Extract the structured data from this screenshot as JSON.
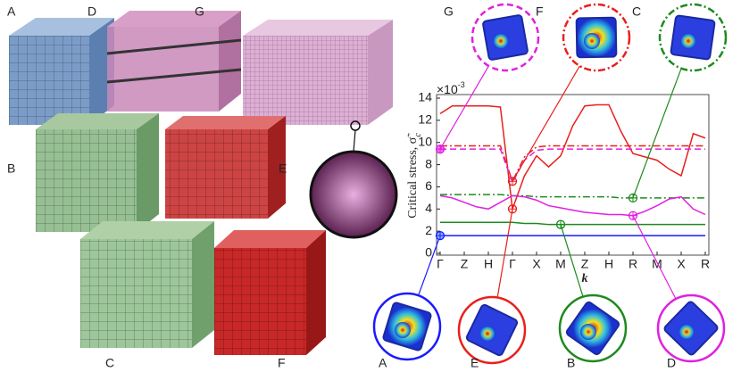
{
  "figure_labels": [
    "A",
    "D",
    "G",
    "B",
    "E",
    "C",
    "F"
  ],
  "chart_data": {
    "type": "line",
    "y_label": "Critical stress, σ̃",
    "y_label_sub": "c",
    "y_exponent": "×10",
    "y_exponent_power": "-3",
    "x_label": "k",
    "xlim": [
      0,
      11
    ],
    "xticks": [
      {
        "value": 0,
        "label": "Γ"
      },
      {
        "value": 1,
        "label": "Z"
      },
      {
        "value": 2,
        "label": "H"
      },
      {
        "value": 3,
        "label": "Γ"
      },
      {
        "value": 4,
        "label": "X"
      },
      {
        "value": 5,
        "label": "M"
      },
      {
        "value": 6,
        "label": "Z"
      },
      {
        "value": 7,
        "label": "H"
      },
      {
        "value": 8,
        "label": "R"
      },
      {
        "value": 9,
        "label": "M"
      },
      {
        "value": 10,
        "label": "X"
      },
      {
        "value": 11,
        "label": "R"
      }
    ],
    "ylim": [
      0,
      14
    ],
    "yticks": [
      0,
      2,
      4,
      6,
      8,
      10,
      12,
      14
    ],
    "x": [
      0,
      0.5,
      1,
      1.5,
      2,
      2.5,
      3,
      3.5,
      4,
      4.5,
      5,
      5.5,
      6,
      6.5,
      7,
      7.5,
      8,
      8.5,
      9,
      9.5,
      10,
      10.5,
      11
    ],
    "series": [
      {
        "color": "#e8201c",
        "style": "solid",
        "values": [
          12.6,
          13.3,
          13.3,
          13.3,
          13.3,
          13.2,
          4.0,
          7.0,
          8.8,
          7.8,
          8.8,
          11.5,
          13.3,
          13.4,
          13.4,
          11.0,
          9.0,
          8.7,
          8.4,
          7.6,
          7.0,
          10.8,
          10.4
        ]
      },
      {
        "color": "#e8201c",
        "style": "dashdot",
        "values": [
          9.7,
          9.7,
          9.7,
          9.7,
          9.7,
          9.7,
          6.5,
          8.7,
          9.6,
          9.7,
          9.7,
          9.7,
          9.7,
          9.7,
          9.7,
          9.7,
          9.7,
          9.7,
          9.7,
          9.7,
          9.7,
          9.7,
          9.7
        ]
      },
      {
        "color": "#e020e0",
        "style": "dashed",
        "values": [
          9.4,
          9.4,
          9.4,
          9.4,
          9.4,
          9.4,
          6.4,
          8.4,
          9.3,
          9.4,
          9.4,
          9.4,
          9.4,
          9.4,
          9.4,
          9.4,
          9.4,
          9.4,
          9.4,
          9.4,
          9.4,
          9.4,
          9.4
        ]
      },
      {
        "color": "#1e8a1e",
        "style": "dashdot",
        "values": [
          5.3,
          5.3,
          5.3,
          5.3,
          5.3,
          5.3,
          5.2,
          5.2,
          5.1,
          5.1,
          5.1,
          5.1,
          5.1,
          5.1,
          5.1,
          5.0,
          5.0,
          5.0,
          5.0,
          5.0,
          5.0,
          5.0,
          5.0
        ]
      },
      {
        "color": "#e020e0",
        "style": "solid",
        "values": [
          5.2,
          5.0,
          4.6,
          4.2,
          4.0,
          4.6,
          5.2,
          5.1,
          4.8,
          4.3,
          4.1,
          3.9,
          3.7,
          3.6,
          3.5,
          3.5,
          3.4,
          3.8,
          4.3,
          4.9,
          5.1,
          4.0,
          3.5
        ]
      },
      {
        "color": "#1e8a1e",
        "style": "solid",
        "values": [
          2.8,
          2.8,
          2.8,
          2.8,
          2.8,
          2.8,
          2.8,
          2.7,
          2.7,
          2.6,
          2.6,
          2.6,
          2.6,
          2.6,
          2.6,
          2.6,
          2.6,
          2.6,
          2.6,
          2.6,
          2.6,
          2.6,
          2.6
        ]
      },
      {
        "color": "#1a1aff",
        "style": "solid",
        "values": [
          1.6,
          1.6,
          1.6,
          1.6,
          1.6,
          1.6,
          1.6,
          1.6,
          1.6,
          1.6,
          1.6,
          1.6,
          1.6,
          1.6,
          1.6,
          1.6,
          1.6,
          1.6,
          1.6,
          1.6,
          1.6,
          1.6,
          1.6
        ]
      }
    ],
    "annotations": [
      {
        "label": "G",
        "x": 0,
        "y": 9.4,
        "color": "#e020e0",
        "border": "dashed"
      },
      {
        "label": "F",
        "x": 3,
        "y": 6.5,
        "color": "#e8201c",
        "border": "dashdot"
      },
      {
        "label": "C",
        "x": 8,
        "y": 5.0,
        "color": "#1e8a1e",
        "border": "dashdot"
      },
      {
        "label": "A",
        "x": 0,
        "y": 1.6,
        "color": "#1a1aff",
        "border": "solid"
      },
      {
        "label": "E",
        "x": 3,
        "y": 4.0,
        "color": "#e8201c",
        "border": "solid"
      },
      {
        "label": "B",
        "x": 5,
        "y": 2.6,
        "color": "#1e8a1e",
        "border": "solid"
      },
      {
        "label": "D",
        "x": 8,
        "y": 3.4,
        "color": "#e020e0",
        "border": "solid"
      }
    ]
  }
}
